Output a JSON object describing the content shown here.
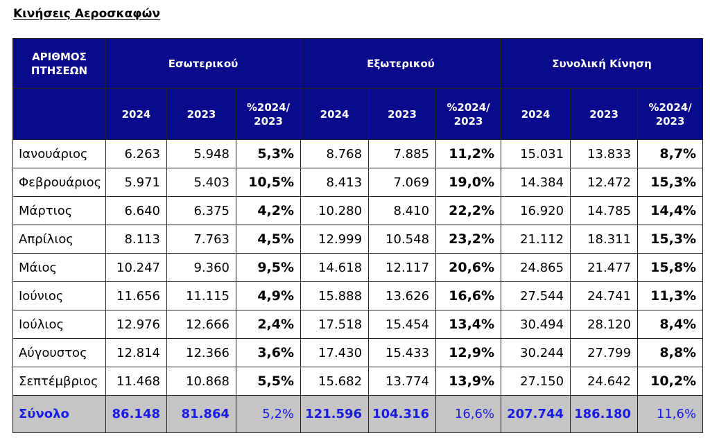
{
  "title": "Κινήσεις Αεροσκαφών",
  "header": {
    "col1": [
      "ΑΡΙΘΜΟΣ",
      "ΠΤΗΣΕΩΝ"
    ],
    "groups": [
      "Εσωτερικού",
      "Εξωτερικού",
      "Συνολική Κίνηση"
    ],
    "sub": {
      "y2024": "2024",
      "y2023": "2023",
      "pct_line1": "%2024/",
      "pct_line2": "2023"
    }
  },
  "rows": [
    {
      "month": "Ιανουάριος",
      "dom2024": "6.263",
      "dom2023": "5.948",
      "domPct": "5,3%",
      "int2024": "8.768",
      "int2023": "7.885",
      "intPct": "11,2%",
      "tot2024": "15.031",
      "tot2023": "13.833",
      "totPct": "8,7%"
    },
    {
      "month": "Φεβρουάριος",
      "dom2024": "5.971",
      "dom2023": "5.403",
      "domPct": "10,5%",
      "int2024": "8.413",
      "int2023": "7.069",
      "intPct": "19,0%",
      "tot2024": "14.384",
      "tot2023": "12.472",
      "totPct": "15,3%"
    },
    {
      "month": "Μάρτιος",
      "dom2024": "6.640",
      "dom2023": "6.375",
      "domPct": "4,2%",
      "int2024": "10.280",
      "int2023": "8.410",
      "intPct": "22,2%",
      "tot2024": "16.920",
      "tot2023": "14.785",
      "totPct": "14,4%"
    },
    {
      "month": "Απρίλιος",
      "dom2024": "8.113",
      "dom2023": "7.763",
      "domPct": "4,5%",
      "int2024": "12.999",
      "int2023": "10.548",
      "intPct": "23,2%",
      "tot2024": "21.112",
      "tot2023": "18.311",
      "totPct": "15,3%"
    },
    {
      "month": "Μάιος",
      "dom2024": "10.247",
      "dom2023": "9.360",
      "domPct": "9,5%",
      "int2024": "14.618",
      "int2023": "12.117",
      "intPct": "20,6%",
      "tot2024": "24.865",
      "tot2023": "21.477",
      "totPct": "15,8%"
    },
    {
      "month": "Ιούνιος",
      "dom2024": "11.656",
      "dom2023": "11.115",
      "domPct": "4,9%",
      "int2024": "15.888",
      "int2023": "13.626",
      "intPct": "16,6%",
      "tot2024": "27.544",
      "tot2023": "24.741",
      "totPct": "11,3%"
    },
    {
      "month": "Ιούλιος",
      "dom2024": "12.976",
      "dom2023": "12.666",
      "domPct": "2,4%",
      "int2024": "17.518",
      "int2023": "15.454",
      "intPct": "13,4%",
      "tot2024": "30.494",
      "tot2023": "28.120",
      "totPct": "8,4%"
    },
    {
      "month": "Αύγουστος",
      "dom2024": "12.814",
      "dom2023": "12.366",
      "domPct": "3,6%",
      "int2024": "17.430",
      "int2023": "15.433",
      "intPct": "12,9%",
      "tot2024": "30.244",
      "tot2023": "27.799",
      "totPct": "8,8%"
    },
    {
      "month": "Σεπτέμβριος",
      "dom2024": "11.468",
      "dom2023": "10.868",
      "domPct": "5,5%",
      "int2024": "15.682",
      "int2023": "13.774",
      "intPct": "13,9%",
      "tot2024": "27.150",
      "tot2023": "24.642",
      "totPct": "10,2%"
    }
  ],
  "total": {
    "month": "Σύνολο",
    "dom2024": "86.148",
    "dom2023": "81.864",
    "domPct": "5,2%",
    "int2024": "121.596",
    "int2023": "104.316",
    "intPct": "16,6%",
    "tot2024": "207.744",
    "tot2023": "186.180",
    "totPct": "11,6%"
  },
  "colors": {
    "header_bg": "#0a0a8c",
    "header_text": "#ffffff",
    "total_bg": "#c5c5c5",
    "total_text": "#1a1ae6"
  }
}
